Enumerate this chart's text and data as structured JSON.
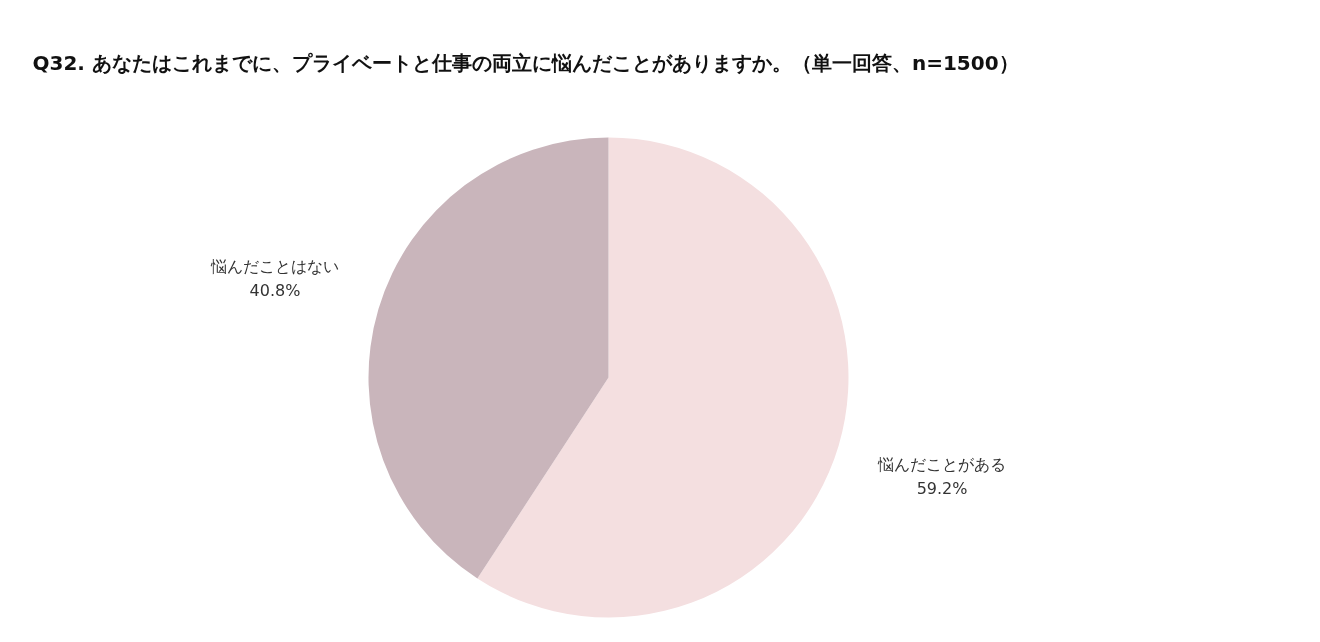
{
  "chart_data": {
    "type": "pie",
    "title": "Q32. あなたはこれまでに、プライベートと仕事の両立に悩んだことがありますか。（単一回答、n=1500）",
    "categories": [
      "悩んだことがある",
      "悩んだことはない"
    ],
    "values": [
      59.2,
      40.8
    ],
    "value_labels": [
      "59.2%",
      "40.8%"
    ],
    "colors": [
      "#f4dfe0",
      "#c9b5bb"
    ]
  }
}
